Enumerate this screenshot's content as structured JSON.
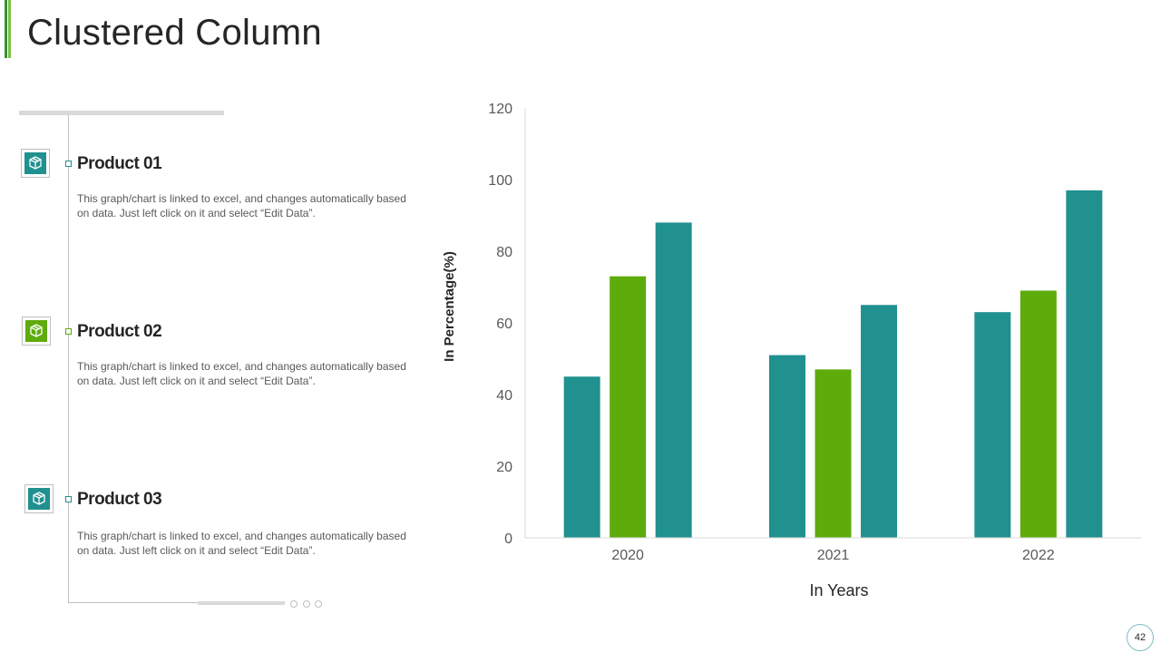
{
  "title": "Clustered Column",
  "page_number": "42",
  "colors": {
    "teal": "#20918f",
    "green": "#5eab0c"
  },
  "products": [
    {
      "title": "Product 01",
      "description": "This graph/chart is linked to excel, and changes automatically based on data. Just left click on it and select “Edit Data”.",
      "color": "#20918f",
      "icon": "box-icon"
    },
    {
      "title": "Product 02",
      "description": "This graph/chart is linked to excel, and changes automatically based on data. Just left click on it and select “Edit Data”.",
      "color": "#5eab0c",
      "icon": "box-icon"
    },
    {
      "title": "Product 03",
      "description": "This graph/chart is linked to excel, and changes automatically based on data. Just left click on it and select “Edit Data”.",
      "color": "#20918f",
      "icon": "box-icon"
    }
  ],
  "chart_data": {
    "type": "bar",
    "categories": [
      "2020",
      "2021",
      "2022"
    ],
    "series": [
      {
        "values": [
          45,
          51,
          63
        ],
        "color": "#20918f"
      },
      {
        "values": [
          73,
          47,
          69
        ],
        "color": "#5eab0c"
      },
      {
        "values": [
          88,
          65,
          97
        ],
        "color": "#20918f"
      }
    ],
    "xlabel": "In Years",
    "ylabel": "In Percentage(%)",
    "ylim": [
      0,
      120
    ],
    "yticks": [
      0,
      20,
      40,
      60,
      80,
      100,
      120
    ],
    "grid": false,
    "legend": "none"
  }
}
